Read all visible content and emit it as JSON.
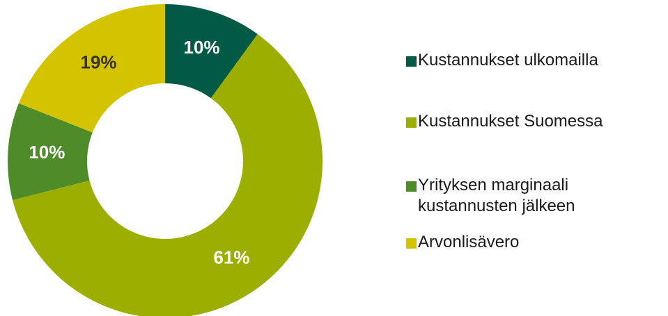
{
  "chart_data": {
    "type": "donut",
    "categories": [
      "Kustannukset ulkomailla",
      "Kustannukset Suomessa",
      "Yrityksen marginaali kustannusten jälkeen",
      "Arvonlisävero"
    ],
    "values": [
      10,
      61,
      10,
      19
    ],
    "value_labels": [
      "10%",
      "61%",
      "10%",
      "19%"
    ],
    "colors": [
      "#005a46",
      "#9caf00",
      "#4e8c2a",
      "#d4c300"
    ],
    "label_colors": [
      "#ffffff",
      "#ffffff",
      "#ffffff",
      "#3a3514"
    ],
    "legend": "right"
  }
}
